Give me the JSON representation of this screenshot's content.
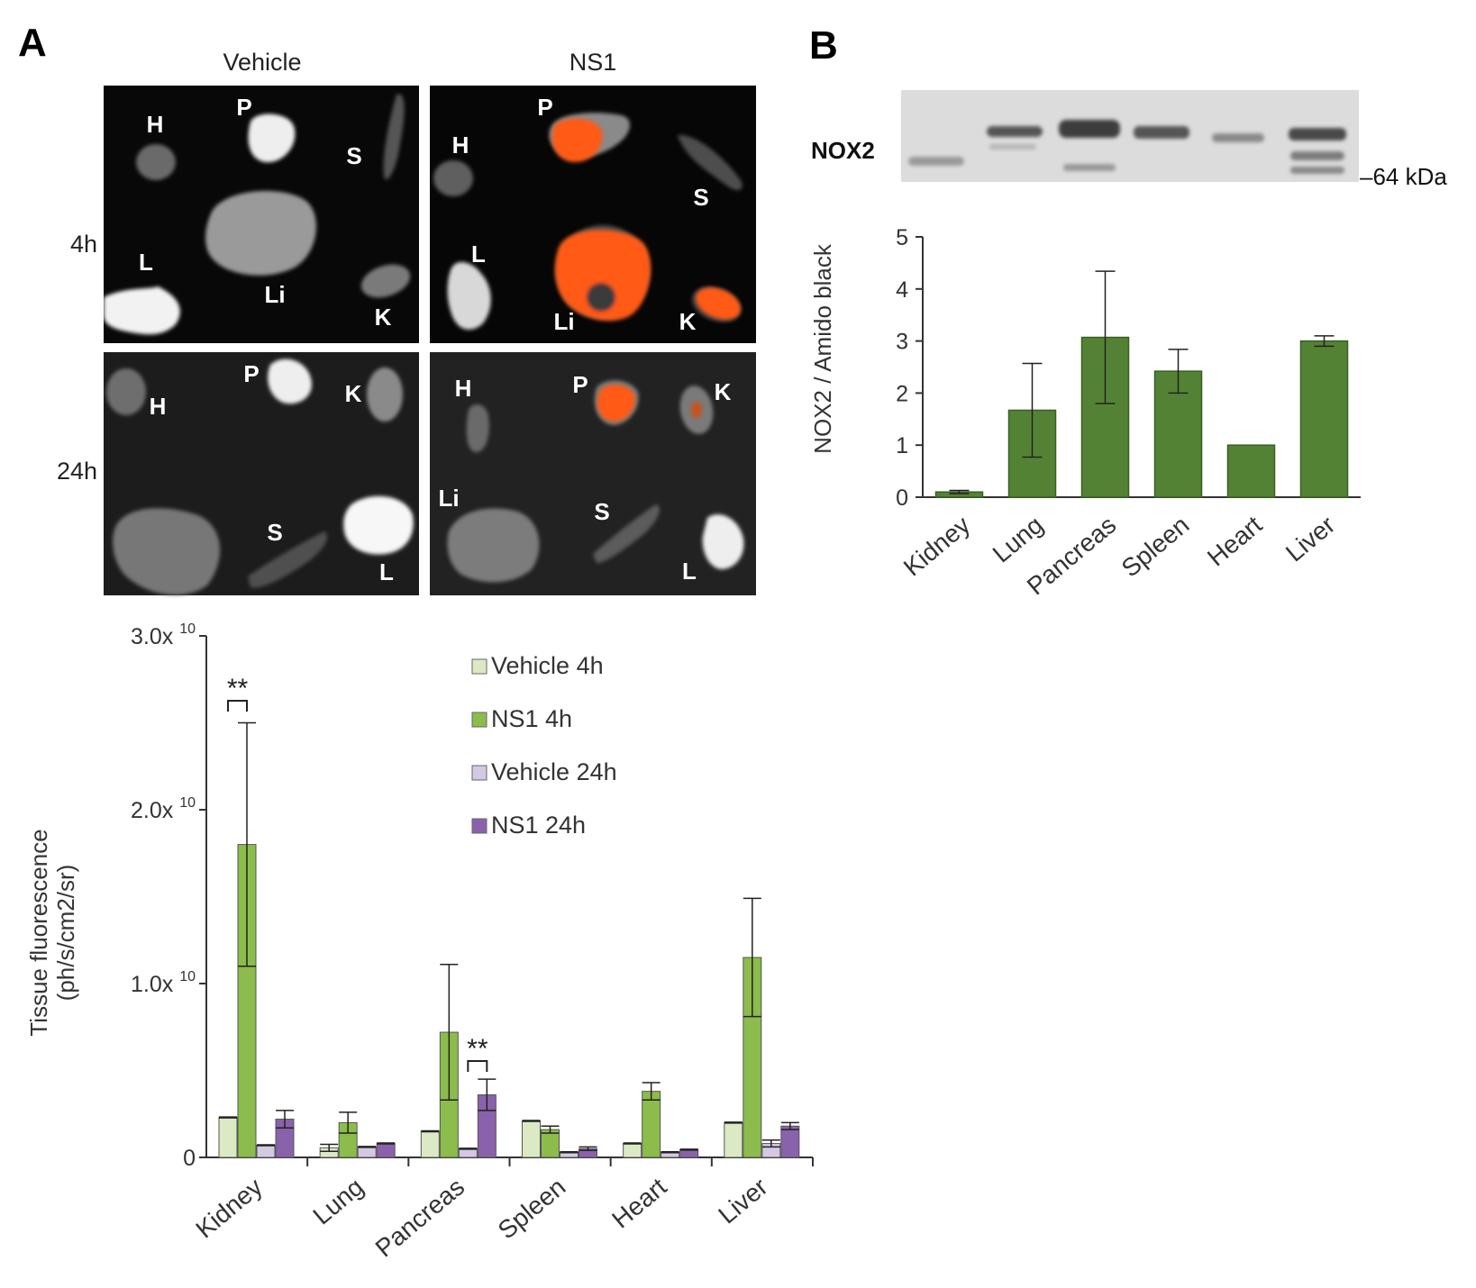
{
  "panels": {
    "a": "A",
    "b": "B"
  },
  "images": {
    "columns": [
      "Vehicle",
      "NS1"
    ],
    "rows": [
      "4h",
      "24h"
    ],
    "organ_labels": {
      "vehicle_4h": [
        "H",
        "P",
        "S",
        "L",
        "Li",
        "K"
      ],
      "ns1_4h": [
        "P",
        "H",
        "S",
        "L",
        "Li",
        "K"
      ],
      "vehicle_24h": [
        "P",
        "H",
        "K",
        "S",
        "L"
      ],
      "ns1_24h": [
        "H",
        "P",
        "K",
        "Li",
        "S",
        "L"
      ]
    }
  },
  "blot": {
    "label": "NOX2",
    "marker": "–64 kDa"
  },
  "colors": {
    "vehicle_4h": "#dbe9c4",
    "ns1_4h": "#8cbc4b",
    "vehicle_24h": "#d4c8e3",
    "ns1_24h": "#8a62ac",
    "nox2_bar": "#548235",
    "ns1_signal": "#ff5a12"
  },
  "chart_data": [
    {
      "type": "bar",
      "categories": [
        "Kidney",
        "Lung",
        "Pancreas",
        "Spleen",
        "Heart",
        "Liver"
      ],
      "ylabel": "Tissue fluorescence",
      "ylabel_units": "(ph/s/cm2/sr)",
      "ylim": [
        0,
        30000000000.0
      ],
      "yticks": [
        {
          "value": 0,
          "label": "0",
          "exp": ""
        },
        {
          "value": 10000000000.0,
          "label": "1.0x 10",
          "exp": "10"
        },
        {
          "value": 20000000000.0,
          "label": "2.0x 10",
          "exp": "10"
        },
        {
          "value": 30000000000.0,
          "label": "3.0x 10",
          "exp": "10"
        }
      ],
      "legend_position": "top-right",
      "series": [
        {
          "name": "Vehicle 4h",
          "values": [
            2300000000.0,
            550000000.0,
            1500000000.0,
            2100000000.0,
            800000000.0,
            2000000000.0
          ],
          "errors": [
            0,
            200000000.0,
            0,
            0,
            0,
            0
          ]
        },
        {
          "name": "NS1 4h",
          "values": [
            18000000000.0,
            2000000000.0,
            7200000000.0,
            1600000000.0,
            3800000000.0,
            11500000000.0
          ],
          "errors": [
            7000000000.0,
            600000000.0,
            3900000000.0,
            200000000.0,
            500000000.0,
            3400000000.0
          ]
        },
        {
          "name": "Vehicle 24h",
          "values": [
            700000000.0,
            600000000.0,
            500000000.0,
            300000000.0,
            300000000.0,
            800000000.0
          ],
          "errors": [
            0,
            0,
            0,
            0,
            0,
            200000000.0
          ]
        },
        {
          "name": "NS1 24h",
          "values": [
            2200000000.0,
            800000000.0,
            3600000000.0,
            500000000.0,
            450000000.0,
            1800000000.0
          ],
          "errors": [
            500000000.0,
            0,
            900000000.0,
            100000000.0,
            0,
            200000000.0
          ]
        }
      ],
      "significance": [
        {
          "category": "Kidney",
          "label": "**"
        },
        {
          "category": "Pancreas",
          "label": "**"
        }
      ]
    },
    {
      "type": "bar",
      "categories": [
        "Kidney",
        "Lung",
        "Pancreas",
        "Spleen",
        "Heart",
        "Liver"
      ],
      "ylabel": "NOX2 / Amido black",
      "ylim": [
        0,
        5
      ],
      "yticks": [
        0,
        1,
        2,
        3,
        4,
        5
      ],
      "series": [
        {
          "values": [
            0.1,
            1.67,
            3.07,
            2.42,
            1.0,
            3.0
          ],
          "errors": [
            0.03,
            0.9,
            1.27,
            0.42,
            0,
            0.1
          ]
        }
      ]
    }
  ]
}
